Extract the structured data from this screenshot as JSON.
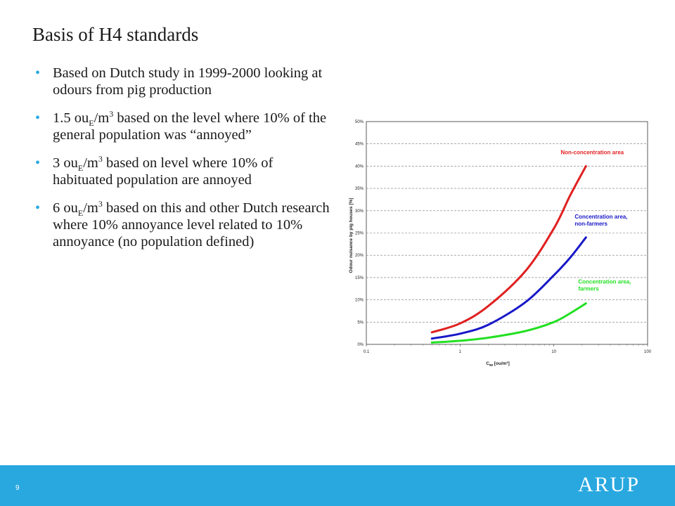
{
  "slide": {
    "title": "Basis of H4 standards",
    "page_number": "9",
    "logo_text": "ARUP",
    "accent_color": "#29a8e0"
  },
  "bullets": [
    {
      "parts": [
        "Based on Dutch study in 1999-2000 looking at odours from pig production"
      ]
    },
    {
      "parts": [
        "1.5 ou",
        "E",
        "/m",
        "3",
        "  based on the level where 10% of the general population was “annoyed”"
      ]
    },
    {
      "parts": [
        "3 ou",
        "E",
        "/m",
        "3",
        " based on level where 10% of habituated population are annoyed"
      ]
    },
    {
      "parts": [
        "6 ou",
        "E",
        "/m",
        "3",
        " based on this and other Dutch research where 10% annoyance level related to 10% annoyance (no population defined)"
      ]
    }
  ],
  "chart_data": {
    "type": "line",
    "xscale": "log",
    "xlim": [
      0.1,
      100
    ],
    "ylim": [
      0,
      50
    ],
    "x_ticks": [
      "0.1",
      "1",
      "10",
      "100"
    ],
    "y_ticks": [
      "0%",
      "5%",
      "10%",
      "15%",
      "20%",
      "25%",
      "30%",
      "35%",
      "40%",
      "45%",
      "50%"
    ],
    "xlabel_main": "C",
    "xlabel_sub": "98",
    "xlabel_rest": " [ou/m³]",
    "ylabel": "Odour nuisance by pig houses [%]",
    "grid": "horizontal dashed",
    "series": [
      {
        "name": "Non-concentration area",
        "color": "#e02020",
        "x": [
          0.5,
          1,
          2,
          5,
          10,
          15,
          22
        ],
        "y": [
          2.7,
          4.7,
          8.6,
          16.5,
          26,
          33.5,
          40
        ]
      },
      {
        "name": "Concentration area, non-farmers",
        "color": "#1818c8",
        "x": [
          0.5,
          1,
          2,
          5,
          10,
          15,
          22
        ],
        "y": [
          1.3,
          2.4,
          4.4,
          9.5,
          15.5,
          19.5,
          24
        ]
      },
      {
        "name": "Concentration area, farmers",
        "color": "#22e022",
        "x": [
          0.5,
          1,
          2,
          5,
          10,
          15,
          22
        ],
        "y": [
          0.4,
          0.8,
          1.5,
          3.0,
          5.0,
          7.0,
          9.2
        ]
      }
    ],
    "series_labels": [
      [
        "Non-concentration area"
      ],
      [
        "Concentration area,",
        "non-farmers"
      ],
      [
        "Concentration area,",
        "farmers"
      ]
    ]
  }
}
